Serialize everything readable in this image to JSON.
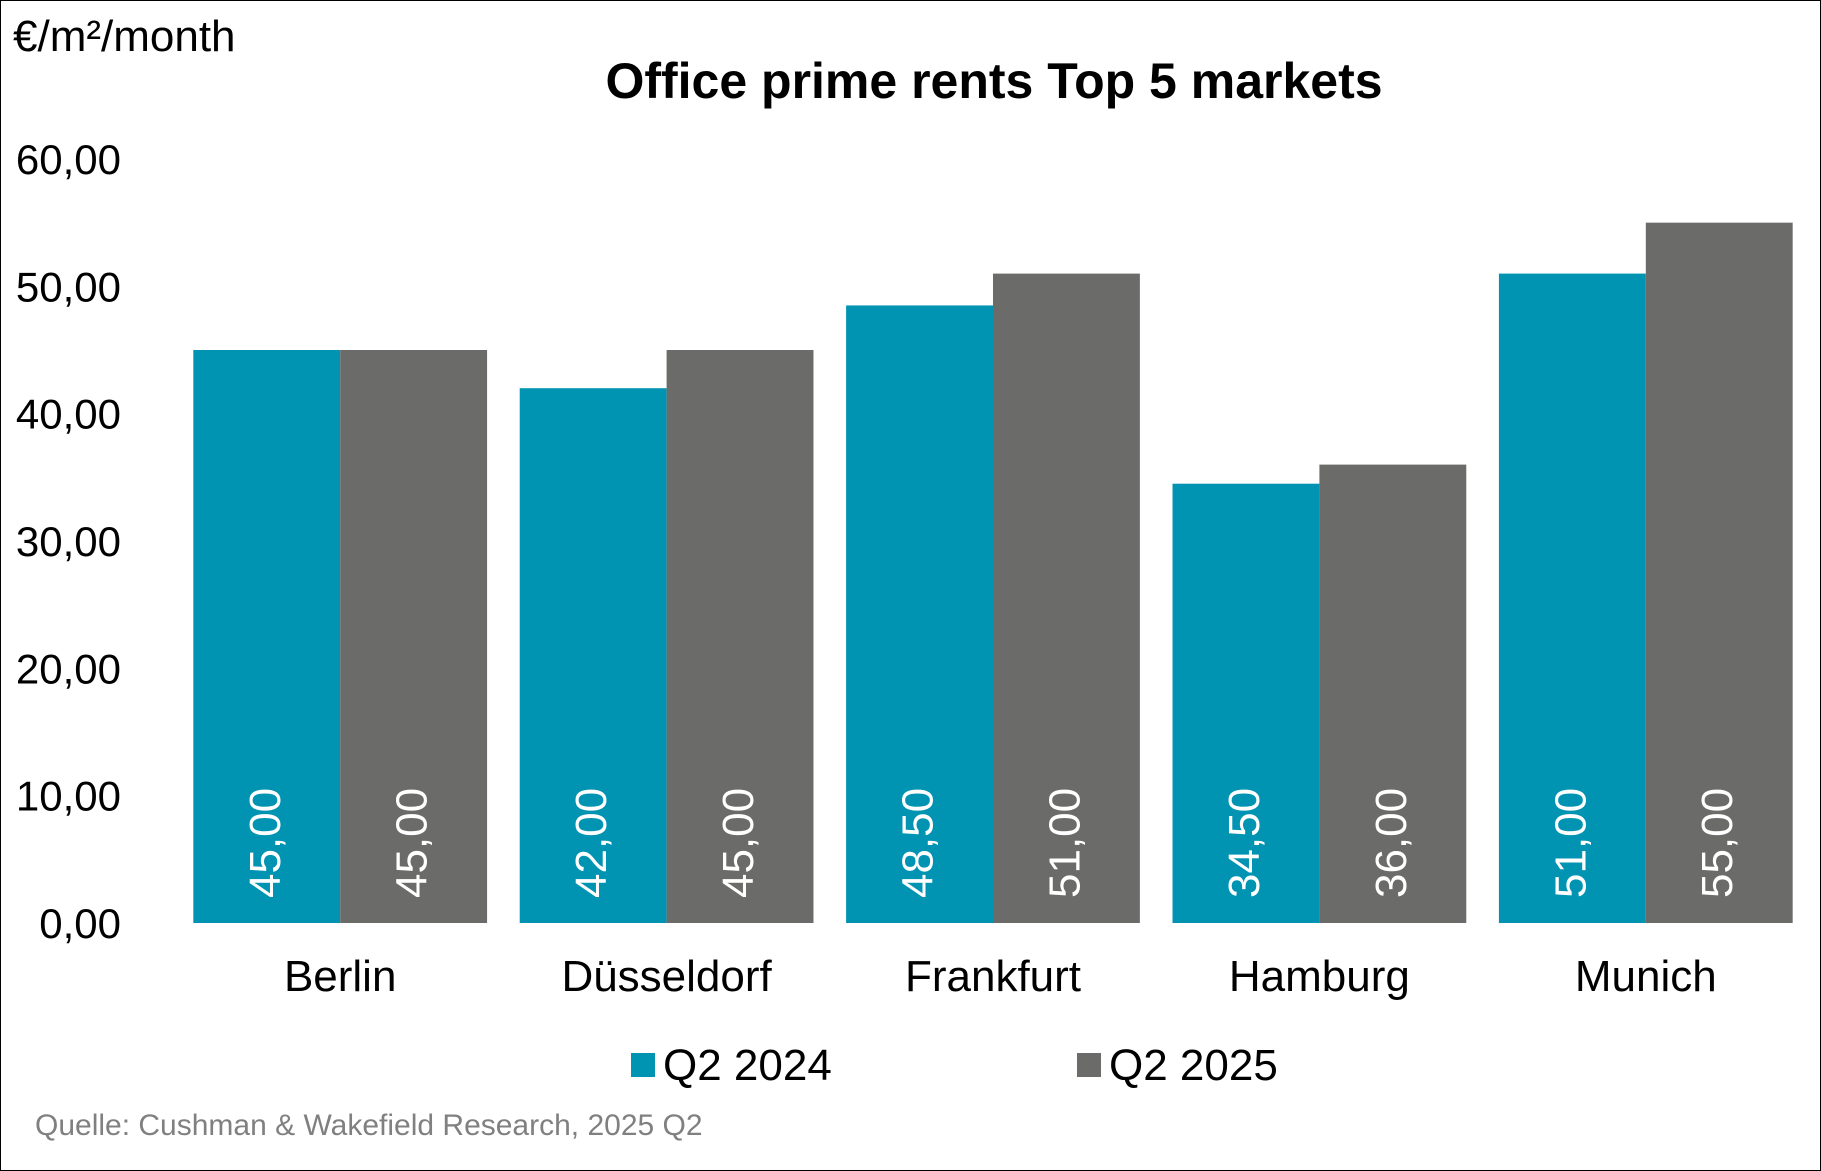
{
  "chart_data": {
    "type": "bar",
    "title": "Office prime rents Top 5 markets",
    "ylabel": "€/m²/month",
    "xlabel": "",
    "categories": [
      "Berlin",
      "Düsseldorf",
      "Frankfurt",
      "Hamburg",
      "Munich"
    ],
    "series": [
      {
        "name": "Q2 2024",
        "color": "#0093B2",
        "values": [
          45.0,
          42.0,
          48.5,
          34.5,
          51.0
        ],
        "labels": [
          "45,00",
          "42,00",
          "48,50",
          "34,50",
          "51,00"
        ]
      },
      {
        "name": "Q2 2025",
        "color": "#6B6B6A",
        "values": [
          45.0,
          45.0,
          51.0,
          36.0,
          55.0
        ],
        "labels": [
          "45,00",
          "45,00",
          "51,00",
          "36,00",
          "55,00"
        ]
      }
    ],
    "ylim": [
      0,
      60
    ],
    "yticks": [
      0,
      10,
      20,
      30,
      40,
      50,
      60
    ],
    "ytick_labels": [
      "0,00",
      "10,00",
      "20,00",
      "30,00",
      "40,00",
      "50,00",
      "60,00"
    ],
    "grid": false,
    "legend_position": "bottom",
    "data_labels": "inside-bottom, rotated vertical, white",
    "source": "Quelle: Cushman & Wakefield Research, 2025 Q2",
    "colors": {
      "text": "#000000",
      "data_label": "#ffffff",
      "source": "#808080",
      "background": "#ffffff"
    }
  }
}
